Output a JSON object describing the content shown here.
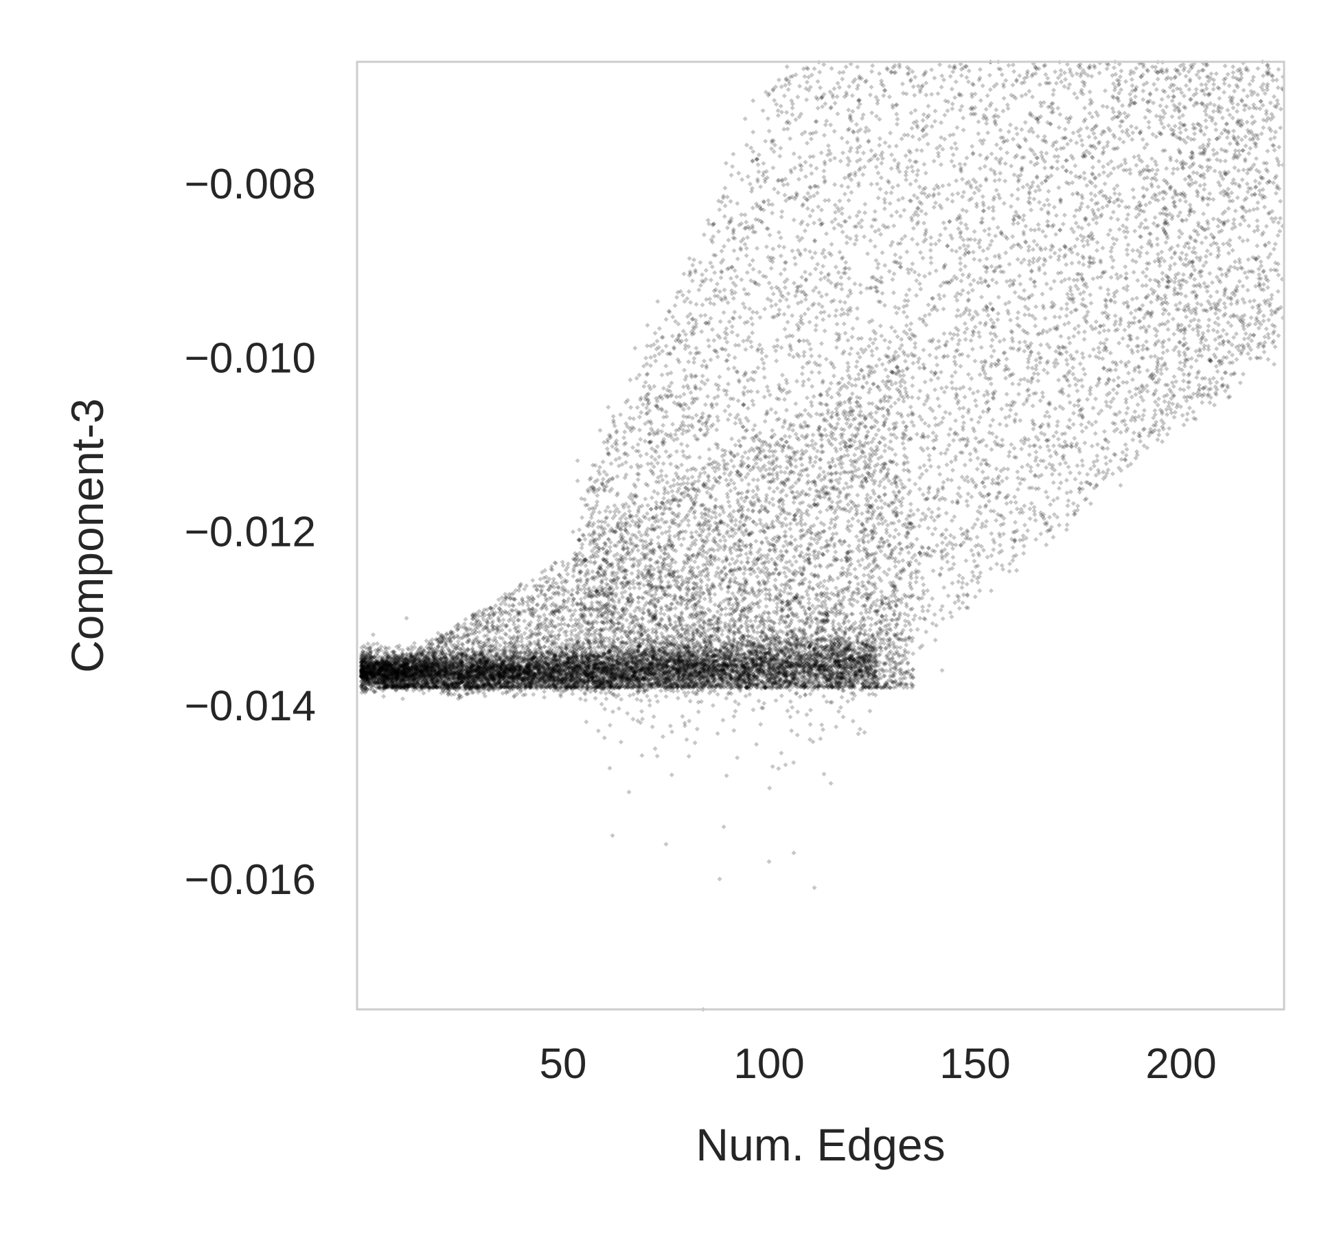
{
  "chart_data": {
    "type": "scatter",
    "title": "",
    "xlabel": "Num. Edges",
    "ylabel": "Component-3",
    "xlim": [
      0,
      225
    ],
    "ylim": [
      -0.0175,
      -0.0066
    ],
    "x_ticks": [
      50,
      100,
      150,
      200
    ],
    "y_ticks": [
      -0.008,
      -0.01,
      -0.012,
      -0.014,
      -0.016
    ],
    "x_tick_labels": [
      "50",
      "100",
      "150",
      "200"
    ],
    "y_tick_labels": [
      "−0.008",
      "−0.010",
      "−0.012",
      "−0.014",
      "−0.016"
    ],
    "grid": false,
    "marker_color": "#000000",
    "frame_color": "#cccccc",
    "point_groups": [
      {
        "x_range": [
          1,
          70
        ],
        "y_base": -0.01365,
        "y_spread": 0.0006,
        "count": 6000
      },
      {
        "x_range": [
          40,
          130
        ],
        "y_base": -0.0132,
        "y_spread": 0.0012,
        "count": 5000
      },
      {
        "x_range": [
          60,
          224
        ],
        "y_base": -0.0105,
        "y_spread": 0.003,
        "count": 6000
      }
    ],
    "outliers": [
      {
        "x": 62,
        "y": -0.0155
      },
      {
        "x": 75,
        "y": -0.0156
      },
      {
        "x": 88,
        "y": -0.016
      },
      {
        "x": 89,
        "y": -0.0154
      },
      {
        "x": 100,
        "y": -0.0158
      },
      {
        "x": 106,
        "y": -0.0157
      },
      {
        "x": 111,
        "y": -0.0161
      },
      {
        "x": 115,
        "y": -0.0149
      },
      {
        "x": 84,
        "y": -0.0175
      },
      {
        "x": 66,
        "y": -0.015
      },
      {
        "x": 12,
        "y": -0.013
      },
      {
        "x": 142,
        "y": -0.0136
      }
    ]
  }
}
